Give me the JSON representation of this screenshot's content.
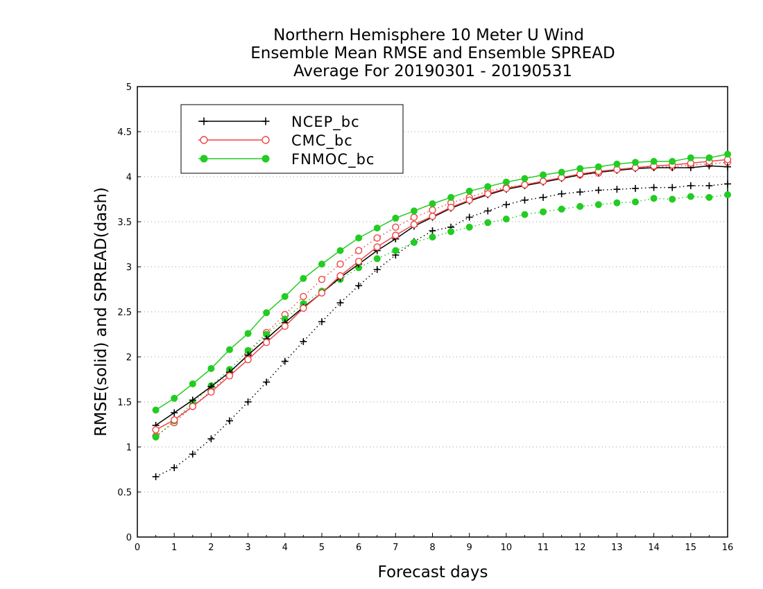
{
  "chart_data": {
    "type": "line",
    "title": [
      "Northern Hemisphere 10 Meter U Wind",
      "Ensemble Mean RMSE and Ensemble SPREAD",
      "Average For 20190301 - 20190531"
    ],
    "xlabel": "Forecast days",
    "ylabel": "RMSE(solid) and SPREAD(dash)",
    "xlim": [
      0,
      16
    ],
    "ylim": [
      0,
      5
    ],
    "xticks": [
      "0",
      "1",
      "2",
      "3",
      "4",
      "5",
      "6",
      "7",
      "8",
      "9",
      "10",
      "11",
      "12",
      "13",
      "14",
      "15",
      "16"
    ],
    "yticks": [
      "0",
      "0.5",
      "1",
      "1.5",
      "2",
      "2.5",
      "3",
      "3.5",
      "4",
      "4.5",
      "5"
    ],
    "grid": "horizontal dotted",
    "legend_position": "top-left",
    "x": [
      0.5,
      1,
      1.5,
      2,
      2.5,
      3,
      3.5,
      4,
      4.5,
      5,
      5.5,
      6,
      6.5,
      7,
      7.5,
      8,
      8.5,
      9,
      9.5,
      10,
      10.5,
      11,
      11.5,
      12,
      12.5,
      13,
      13.5,
      14,
      14.5,
      15,
      15.5,
      16
    ],
    "series": [
      {
        "name": "NCEP_bc",
        "kind": "rmse",
        "color": "#000000",
        "marker": "plus",
        "values": [
          1.24,
          1.38,
          1.52,
          1.67,
          1.83,
          2.02,
          2.2,
          2.38,
          2.55,
          2.71,
          2.88,
          3.03,
          3.18,
          3.31,
          3.45,
          3.55,
          3.65,
          3.73,
          3.8,
          3.86,
          3.9,
          3.94,
          3.98,
          4.02,
          4.05,
          4.07,
          4.09,
          4.1,
          4.1,
          4.1,
          4.12,
          4.11
        ]
      },
      {
        "name": "CMC_bc",
        "kind": "rmse",
        "color": "#ee4444",
        "marker": "open-circle",
        "values": [
          1.19,
          1.3,
          1.45,
          1.61,
          1.79,
          1.97,
          2.16,
          2.34,
          2.54,
          2.71,
          2.9,
          3.06,
          3.22,
          3.35,
          3.47,
          3.56,
          3.66,
          3.74,
          3.81,
          3.87,
          3.91,
          3.95,
          3.99,
          4.03,
          4.06,
          4.08,
          4.1,
          4.12,
          4.13,
          4.15,
          4.17,
          4.19
        ]
      },
      {
        "name": "FNMOC_bc",
        "kind": "rmse",
        "color": "#22cc22",
        "marker": "filled-circle",
        "values": [
          1.41,
          1.54,
          1.7,
          1.87,
          2.08,
          2.26,
          2.49,
          2.67,
          2.87,
          3.03,
          3.18,
          3.32,
          3.43,
          3.54,
          3.62,
          3.7,
          3.77,
          3.84,
          3.89,
          3.94,
          3.98,
          4.02,
          4.05,
          4.09,
          4.11,
          4.14,
          4.16,
          4.17,
          4.17,
          4.21,
          4.21,
          4.25
        ]
      },
      {
        "name": "NCEP_bc",
        "kind": "spread",
        "color": "#000000",
        "marker": "plus",
        "values": [
          0.67,
          0.77,
          0.92,
          1.09,
          1.29,
          1.5,
          1.72,
          1.95,
          2.17,
          2.39,
          2.6,
          2.79,
          2.97,
          3.13,
          3.28,
          3.4,
          3.44,
          3.55,
          3.62,
          3.69,
          3.74,
          3.77,
          3.81,
          3.83,
          3.85,
          3.86,
          3.87,
          3.88,
          3.88,
          3.9,
          3.9,
          3.92
        ]
      },
      {
        "name": "CMC_bc",
        "kind": "spread",
        "color": "#ee4444",
        "marker": "open-circle",
        "values": [
          1.12,
          1.27,
          1.45,
          1.62,
          1.82,
          2.03,
          2.27,
          2.47,
          2.67,
          2.86,
          3.03,
          3.18,
          3.32,
          3.44,
          3.55,
          3.63,
          3.71,
          3.77,
          3.84,
          3.88,
          3.91,
          3.95,
          3.99,
          4.02,
          4.04,
          4.08,
          4.1,
          4.11,
          4.11,
          4.13,
          4.14,
          4.16
        ]
      },
      {
        "name": "FNMOC_bc",
        "kind": "spread",
        "color": "#22cc22",
        "marker": "filled-circle",
        "values": [
          1.11,
          1.29,
          1.49,
          1.68,
          1.86,
          2.07,
          2.25,
          2.42,
          2.59,
          2.73,
          2.86,
          2.99,
          3.09,
          3.18,
          3.27,
          3.33,
          3.39,
          3.44,
          3.49,
          3.53,
          3.58,
          3.61,
          3.64,
          3.67,
          3.69,
          3.71,
          3.72,
          3.76,
          3.75,
          3.78,
          3.77,
          3.8
        ]
      }
    ],
    "legend": [
      {
        "label": "NCEP_bc",
        "color": "#000000",
        "marker": "plus"
      },
      {
        "label": "CMC_bc",
        "color": "#ee4444",
        "marker": "open-circle"
      },
      {
        "label": "FNMOC_bc",
        "color": "#22cc22",
        "marker": "filled-circle"
      }
    ]
  }
}
